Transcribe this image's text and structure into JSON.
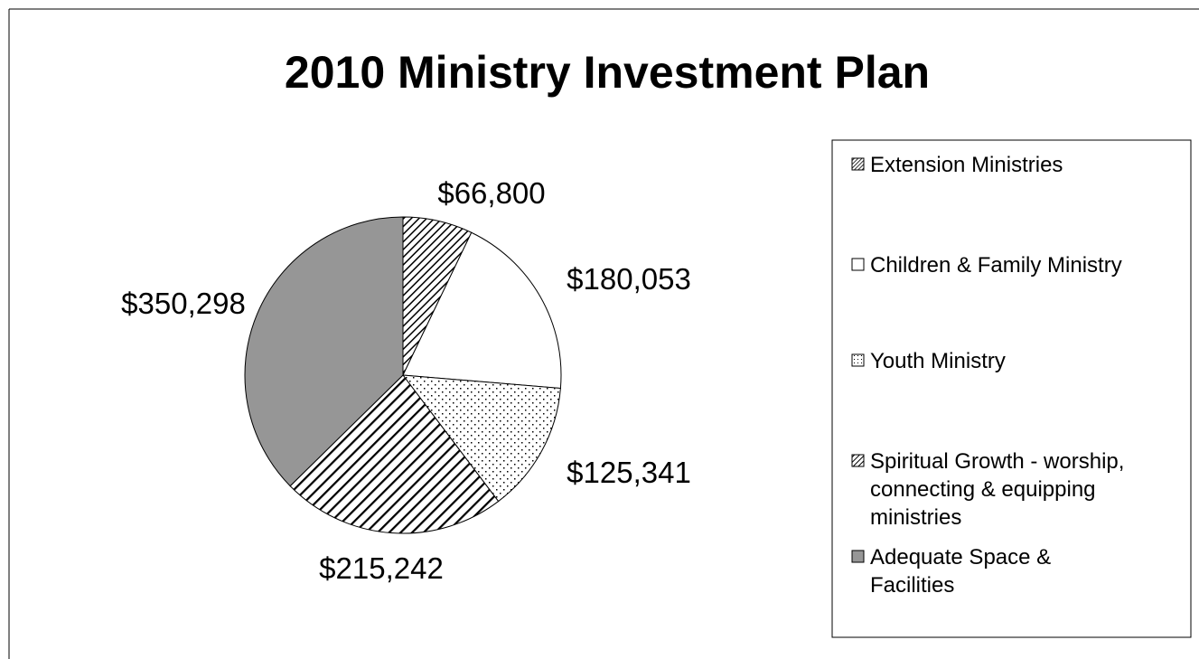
{
  "chart_data": {
    "type": "pie",
    "title": "2010 Ministry Investment Plan",
    "start_angle_deg": 0,
    "direction": "clockwise",
    "legend_position": "right",
    "slices": [
      {
        "label": "Extension Ministries",
        "value": 66800,
        "display": "$66,800",
        "pattern": "diag-dense",
        "legend_lines": [
          "Extension Ministries"
        ]
      },
      {
        "label": "Children & Family Ministry",
        "value": 180053,
        "display": "$180,053",
        "pattern": "white",
        "legend_lines": [
          "Children & Family Ministry"
        ]
      },
      {
        "label": "Youth Ministry",
        "value": 125341,
        "display": "$125,341",
        "pattern": "dots",
        "legend_lines": [
          "Youth Ministry"
        ]
      },
      {
        "label": "Spiritual Growth - worship, connecting & equipping ministries",
        "value": 215242,
        "display": "$215,242",
        "pattern": "diag-wide",
        "legend_lines": [
          "Spiritual Growth - worship,",
          "connecting & equipping",
          "ministries"
        ]
      },
      {
        "label": "Adequate Space & Facilities",
        "value": 350298,
        "display": "$350,298",
        "pattern": "gray",
        "legend_lines": [
          "Adequate Space &",
          "Facilities"
        ]
      }
    ],
    "colors": {
      "gray": "#969696",
      "outline": "#000000",
      "background": "#ffffff"
    }
  }
}
